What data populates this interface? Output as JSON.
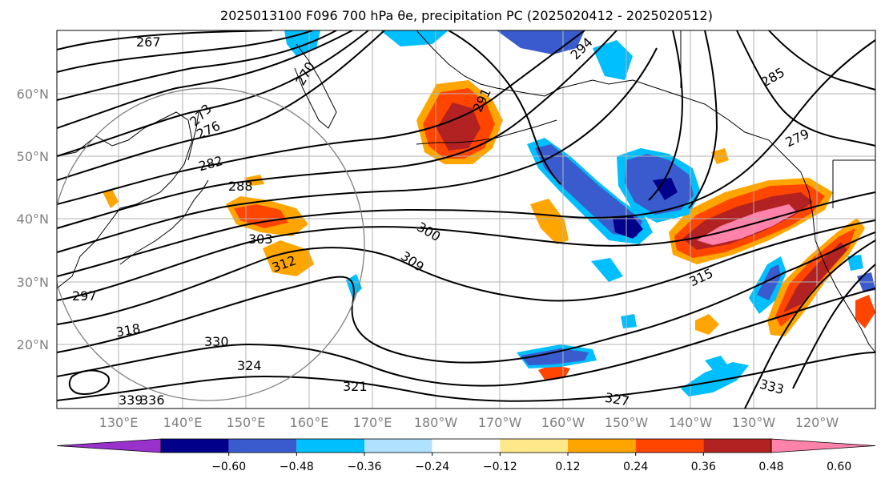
{
  "title": "2025013100 F096 700 hPa θe, precipitation PC (2025020412 - 2025020512)",
  "lat_labels": [
    "60°N",
    "50°N",
    "40°N",
    "30°N",
    "20°N"
  ],
  "lon_labels": [
    "130°E",
    "140°E",
    "150°E",
    "160°E",
    "170°E",
    "180°W",
    "170°W",
    "160°W",
    "150°W",
    "140°W",
    "130°W",
    "120°W"
  ],
  "contour_labels": [
    "267",
    "270",
    "273",
    "276",
    "279",
    "282",
    "285",
    "288",
    "291",
    "294",
    "297",
    "300",
    "303",
    "309",
    "312",
    "315",
    "318",
    "321",
    "324",
    "327",
    "330",
    "333",
    "336",
    "339"
  ],
  "colorbar": {
    "colors": [
      "#9932cc",
      "#00008b",
      "#3a5bcd",
      "#00bfff",
      "#b0e2ff",
      "#ffffff",
      "#ffe88a",
      "#ffa500",
      "#ff4500",
      "#b22222",
      "#ff82ab"
    ],
    "ticks": [
      "−0.60",
      "−0.48",
      "−0.36",
      "−0.24",
      "−0.12",
      "0.12",
      "0.24",
      "0.36",
      "0.48",
      "0.60"
    ]
  }
}
